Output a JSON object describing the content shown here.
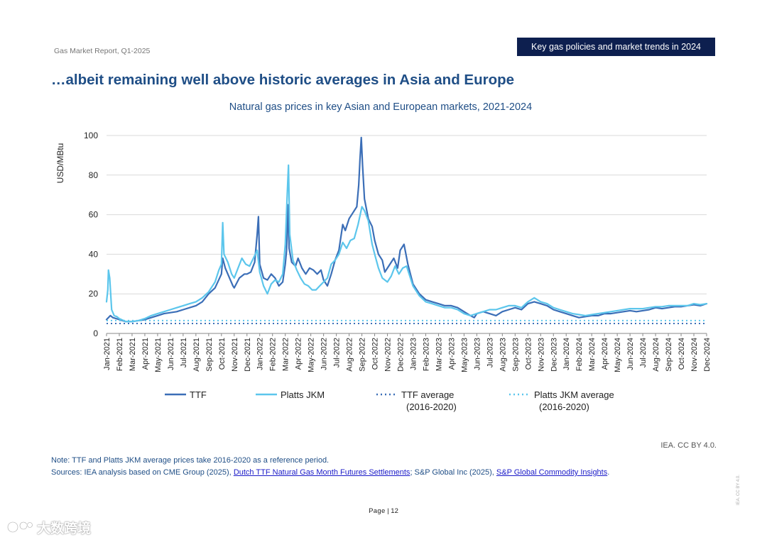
{
  "header": {
    "report_label": "Gas Market Report, Q1-2025",
    "section_tag": "Key gas policies and market trends in 2024",
    "slide_title": "…albeit remaining well above historic averages in Asia and Europe"
  },
  "chart_data": {
    "type": "line",
    "title": "Natural gas prices in key Asian and European markets, 2021-2024",
    "ylabel": "USD/MBtu",
    "xlabel": "",
    "ylim": [
      0,
      100
    ],
    "yticks": [
      0,
      20,
      40,
      60,
      80,
      100
    ],
    "grid": true,
    "categories": [
      "Jan-2021",
      "Feb-2021",
      "Mar-2021",
      "Apr-2021",
      "May-2021",
      "Jun-2021",
      "Jul-2021",
      "Aug-2021",
      "Sep-2021",
      "Oct-2021",
      "Nov-2021",
      "Dec-2021",
      "Jan-2022",
      "Feb-2022",
      "Mar-2022",
      "Apr-2022",
      "May-2022",
      "Jun-2022",
      "Jul-2022",
      "Aug-2022",
      "Sep-2022",
      "Oct-2022",
      "Nov-2022",
      "Dec-2022",
      "Jan-2023",
      "Feb-2023",
      "Mar-2023",
      "Apr-2023",
      "May-2023",
      "Jun-2023",
      "Jul-2023",
      "Aug-2023",
      "Sep-2023",
      "Oct-2023",
      "Nov-2023",
      "Dec-2023",
      "Jan-2024",
      "Feb-2024",
      "Mar-2024",
      "Apr-2024",
      "May-2024",
      "Jun-2024",
      "Jul-2024",
      "Aug-2024",
      "Sep-2024",
      "Oct-2024",
      "Nov-2024",
      "Dec-2024"
    ],
    "series": [
      {
        "name": "TTF",
        "style": "solid",
        "color": "#3b6eb7",
        "points": [
          [
            0,
            7
          ],
          [
            0.3,
            9
          ],
          [
            0.5,
            8
          ],
          [
            1,
            7
          ],
          [
            1.5,
            6
          ],
          [
            2,
            6
          ],
          [
            2.5,
            6.5
          ],
          [
            3,
            7
          ],
          [
            3.5,
            8
          ],
          [
            4,
            9
          ],
          [
            4.5,
            10
          ],
          [
            5,
            10.5
          ],
          [
            5.5,
            11
          ],
          [
            6,
            12
          ],
          [
            6.5,
            13
          ],
          [
            7,
            14
          ],
          [
            7.5,
            16
          ],
          [
            8,
            20
          ],
          [
            8.5,
            23
          ],
          [
            9,
            30
          ],
          [
            9.1,
            38
          ],
          [
            9.3,
            33
          ],
          [
            9.5,
            30
          ],
          [
            9.7,
            27
          ],
          [
            9.9,
            24
          ],
          [
            10,
            23
          ],
          [
            10.4,
            28
          ],
          [
            10.8,
            30
          ],
          [
            11,
            30
          ],
          [
            11.3,
            31
          ],
          [
            11.6,
            36
          ],
          [
            11.8,
            50
          ],
          [
            11.9,
            59
          ],
          [
            12,
            35
          ],
          [
            12.3,
            28
          ],
          [
            12.6,
            27
          ],
          [
            12.9,
            30
          ],
          [
            13.2,
            28
          ],
          [
            13.5,
            24
          ],
          [
            13.8,
            26
          ],
          [
            14,
            35
          ],
          [
            14.1,
            42
          ],
          [
            14.2,
            65
          ],
          [
            14.3,
            43
          ],
          [
            14.5,
            36
          ],
          [
            14.8,
            34
          ],
          [
            15,
            38
          ],
          [
            15.3,
            33
          ],
          [
            15.6,
            30
          ],
          [
            15.9,
            33
          ],
          [
            16.2,
            32
          ],
          [
            16.5,
            30
          ],
          [
            16.8,
            32
          ],
          [
            17,
            27
          ],
          [
            17.3,
            24
          ],
          [
            17.6,
            30
          ],
          [
            17.9,
            37
          ],
          [
            18.2,
            42
          ],
          [
            18.5,
            55
          ],
          [
            18.7,
            52
          ],
          [
            19,
            58
          ],
          [
            19.3,
            61
          ],
          [
            19.6,
            64
          ],
          [
            19.75,
            75
          ],
          [
            19.85,
            88
          ],
          [
            19.95,
            99
          ],
          [
            20.05,
            85
          ],
          [
            20.2,
            68
          ],
          [
            20.5,
            58
          ],
          [
            20.8,
            54
          ],
          [
            21,
            47
          ],
          [
            21.3,
            40
          ],
          [
            21.6,
            37
          ],
          [
            21.8,
            31
          ],
          [
            22.2,
            35
          ],
          [
            22.5,
            38
          ],
          [
            22.8,
            33
          ],
          [
            23,
            42
          ],
          [
            23.3,
            45
          ],
          [
            23.6,
            35
          ],
          [
            24,
            25
          ],
          [
            24.5,
            20
          ],
          [
            25,
            17
          ],
          [
            25.5,
            16
          ],
          [
            26,
            15
          ],
          [
            26.5,
            14
          ],
          [
            27,
            14
          ],
          [
            27.5,
            13
          ],
          [
            28,
            11
          ],
          [
            28.5,
            9
          ],
          [
            28.8,
            8
          ],
          [
            29,
            10
          ],
          [
            29.5,
            11
          ],
          [
            30,
            10
          ],
          [
            30.5,
            9
          ],
          [
            31,
            11
          ],
          [
            31.5,
            12
          ],
          [
            32,
            13
          ],
          [
            32.5,
            12
          ],
          [
            33,
            15
          ],
          [
            33.5,
            16
          ],
          [
            34,
            15
          ],
          [
            34.5,
            14
          ],
          [
            35,
            12
          ],
          [
            35.5,
            11
          ],
          [
            36,
            10
          ],
          [
            36.5,
            9
          ],
          [
            37,
            8
          ],
          [
            37.5,
            8.5
          ],
          [
            38,
            9
          ],
          [
            38.5,
            9
          ],
          [
            39,
            10
          ],
          [
            39.5,
            10
          ],
          [
            40,
            10.5
          ],
          [
            40.5,
            11
          ],
          [
            41,
            11.5
          ],
          [
            41.5,
            11
          ],
          [
            42,
            11.5
          ],
          [
            42.5,
            12
          ],
          [
            43,
            13
          ],
          [
            43.5,
            12.5
          ],
          [
            44,
            13
          ],
          [
            44.5,
            13.5
          ],
          [
            45,
            13.5
          ],
          [
            45.5,
            14
          ],
          [
            46,
            14.5
          ],
          [
            46.5,
            14
          ],
          [
            47,
            15
          ]
        ]
      },
      {
        "name": "Platts JKM",
        "style": "solid",
        "color": "#5cc6ec",
        "points": [
          [
            0,
            16
          ],
          [
            0.1,
            22
          ],
          [
            0.15,
            32
          ],
          [
            0.25,
            28
          ],
          [
            0.4,
            12
          ],
          [
            0.6,
            9
          ],
          [
            0.8,
            8.5
          ],
          [
            1,
            7.5
          ],
          [
            1.5,
            6
          ],
          [
            2,
            6
          ],
          [
            2.5,
            6.5
          ],
          [
            3,
            7.5
          ],
          [
            3.5,
            9
          ],
          [
            4,
            10
          ],
          [
            4.5,
            11
          ],
          [
            5,
            12
          ],
          [
            5.5,
            13
          ],
          [
            6,
            14
          ],
          [
            6.5,
            15
          ],
          [
            7,
            16
          ],
          [
            7.5,
            18
          ],
          [
            8,
            21
          ],
          [
            8.5,
            26
          ],
          [
            8.8,
            32
          ],
          [
            9,
            35
          ],
          [
            9.1,
            56
          ],
          [
            9.2,
            40
          ],
          [
            9.5,
            36
          ],
          [
            9.8,
            30
          ],
          [
            10,
            28
          ],
          [
            10.3,
            33
          ],
          [
            10.6,
            38
          ],
          [
            10.9,
            35
          ],
          [
            11.2,
            34
          ],
          [
            11.5,
            38
          ],
          [
            11.8,
            42
          ],
          [
            12,
            31
          ],
          [
            12.3,
            24
          ],
          [
            12.6,
            20
          ],
          [
            12.9,
            25
          ],
          [
            13.2,
            27
          ],
          [
            13.5,
            26
          ],
          [
            13.8,
            30
          ],
          [
            14,
            45
          ],
          [
            14.15,
            70
          ],
          [
            14.25,
            85
          ],
          [
            14.35,
            50
          ],
          [
            14.6,
            37
          ],
          [
            14.9,
            32
          ],
          [
            15.2,
            28
          ],
          [
            15.5,
            25
          ],
          [
            15.8,
            24
          ],
          [
            16.1,
            22
          ],
          [
            16.4,
            22
          ],
          [
            16.7,
            24
          ],
          [
            17,
            26
          ],
          [
            17.3,
            28
          ],
          [
            17.6,
            35
          ],
          [
            17.9,
            37
          ],
          [
            18.2,
            40
          ],
          [
            18.5,
            46
          ],
          [
            18.8,
            43
          ],
          [
            19.1,
            47
          ],
          [
            19.4,
            48
          ],
          [
            19.7,
            55
          ],
          [
            20,
            64
          ],
          [
            20.2,
            62
          ],
          [
            20.5,
            57
          ],
          [
            20.8,
            45
          ],
          [
            21,
            40
          ],
          [
            21.3,
            33
          ],
          [
            21.6,
            28
          ],
          [
            22,
            26
          ],
          [
            22.3,
            29
          ],
          [
            22.6,
            34
          ],
          [
            22.9,
            30
          ],
          [
            23.2,
            33
          ],
          [
            23.5,
            34
          ],
          [
            23.8,
            28
          ],
          [
            24,
            24
          ],
          [
            24.5,
            19
          ],
          [
            25,
            16
          ],
          [
            25.5,
            15
          ],
          [
            26,
            14
          ],
          [
            26.5,
            13
          ],
          [
            27,
            13
          ],
          [
            27.5,
            12
          ],
          [
            28,
            10
          ],
          [
            28.5,
            9
          ],
          [
            29,
            10
          ],
          [
            29.5,
            11
          ],
          [
            30,
            12
          ],
          [
            30.5,
            12
          ],
          [
            31,
            13
          ],
          [
            31.5,
            14
          ],
          [
            32,
            14
          ],
          [
            32.5,
            13
          ],
          [
            33,
            16
          ],
          [
            33.5,
            18
          ],
          [
            34,
            16
          ],
          [
            34.5,
            15
          ],
          [
            35,
            13
          ],
          [
            35.5,
            12
          ],
          [
            36,
            11
          ],
          [
            36.5,
            10
          ],
          [
            37,
            9.5
          ],
          [
            37.5,
            9
          ],
          [
            38,
            9.5
          ],
          [
            38.5,
            10
          ],
          [
            39,
            10.5
          ],
          [
            39.5,
            11
          ],
          [
            40,
            11.5
          ],
          [
            40.5,
            12
          ],
          [
            41,
            12.5
          ],
          [
            41.5,
            12.5
          ],
          [
            42,
            12.5
          ],
          [
            42.5,
            13
          ],
          [
            43,
            13.5
          ],
          [
            43.5,
            13.5
          ],
          [
            44,
            14
          ],
          [
            44.5,
            14
          ],
          [
            45,
            14
          ],
          [
            45.5,
            14
          ],
          [
            46,
            15
          ],
          [
            46.5,
            14.5
          ],
          [
            47,
            15
          ]
        ]
      },
      {
        "name": "TTF average\n(2016-2020)",
        "style": "dotted",
        "color": "#3b6eb7",
        "values_constant": 5
      },
      {
        "name": "Platts JKM average\n(2016-2020)",
        "style": "dotted",
        "color": "#5cc6ec",
        "values_constant": 6.5
      }
    ],
    "legend": [
      {
        "label": "TTF",
        "label2": "",
        "style": "solid",
        "color": "#3b6eb7"
      },
      {
        "label": "Platts JKM",
        "label2": "",
        "style": "solid",
        "color": "#5cc6ec"
      },
      {
        "label": "TTF average",
        "label2": "(2016-2020)",
        "style": "dotted",
        "color": "#3b6eb7"
      },
      {
        "label": "Platts JKM average",
        "label2": "(2016-2020)",
        "style": "dotted",
        "color": "#5cc6ec"
      }
    ],
    "legend_position": "bottom"
  },
  "footer": {
    "credit": "IEA. CC BY 4.0.",
    "note": "Note: TTF and Platts JKM average prices take 2016-2020 as a reference period.",
    "sources_prefix": "Sources: IEA analysis based on CME Group (2025), ",
    "sources_link1": "Dutch TTF Natural Gas Month Futures Settlements",
    "sources_mid": "; S&P Global Inc (2025), ",
    "sources_link2": "S&P Global Commodity Insights",
    "sources_suffix": ".",
    "page_label": "Page",
    "page_number": "| 12",
    "side_credit": "IEA. CC BY 4.0.",
    "watermark": "大数跨境"
  }
}
